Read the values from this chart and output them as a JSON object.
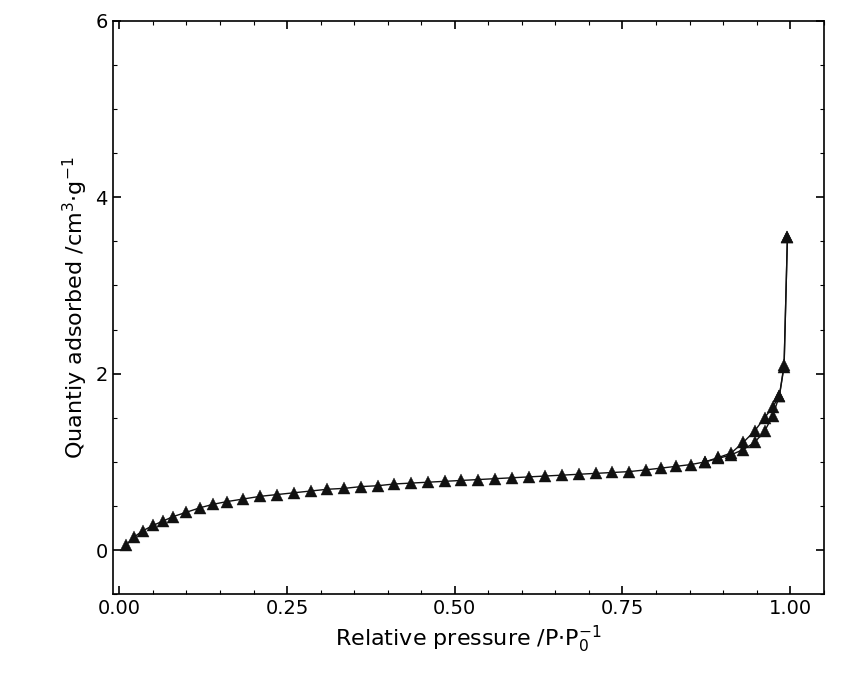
{
  "adsorption_x": [
    0.01,
    0.022,
    0.035,
    0.05,
    0.065,
    0.08,
    0.1,
    0.12,
    0.14,
    0.16,
    0.185,
    0.21,
    0.235,
    0.26,
    0.285,
    0.31,
    0.335,
    0.36,
    0.385,
    0.41,
    0.435,
    0.46,
    0.485,
    0.51,
    0.535,
    0.56,
    0.585,
    0.61,
    0.635,
    0.66,
    0.685,
    0.71,
    0.735,
    0.76,
    0.785,
    0.808,
    0.83,
    0.852,
    0.873,
    0.893,
    0.912,
    0.93,
    0.947,
    0.962,
    0.974,
    0.984,
    0.991,
    0.996
  ],
  "adsorption_y": [
    0.06,
    0.15,
    0.22,
    0.28,
    0.33,
    0.38,
    0.43,
    0.48,
    0.52,
    0.55,
    0.58,
    0.61,
    0.63,
    0.65,
    0.67,
    0.69,
    0.7,
    0.72,
    0.73,
    0.75,
    0.76,
    0.77,
    0.78,
    0.79,
    0.8,
    0.81,
    0.82,
    0.83,
    0.84,
    0.85,
    0.86,
    0.87,
    0.88,
    0.89,
    0.91,
    0.93,
    0.95,
    0.97,
    1.0,
    1.04,
    1.08,
    1.14,
    1.22,
    1.35,
    1.52,
    1.75,
    2.08,
    3.55
  ],
  "desorption_x": [
    0.996,
    0.991,
    0.984,
    0.974,
    0.962,
    0.947,
    0.93,
    0.912,
    0.893,
    0.873
  ],
  "desorption_y": [
    3.55,
    2.1,
    1.75,
    1.62,
    1.5,
    1.35,
    1.22,
    1.1,
    1.05,
    1.0
  ],
  "xlabel_main": "Relative pressure /P",
  "xlabel_sub": "0",
  "xlabel_sup": "-1",
  "ylabel": "Quantiy adsorbed /cm³·g⁻¹",
  "xlim": [
    -0.01,
    1.05
  ],
  "ylim": [
    -0.5,
    6.0
  ],
  "xticks": [
    0.0,
    0.25,
    0.5,
    0.75,
    1.0
  ],
  "yticks": [
    0,
    2,
    4,
    6
  ],
  "marker_color": "#111111",
  "line_color": "#111111",
  "bg_color": "#ffffff",
  "marker_size": 9,
  "linewidth": 1.0
}
